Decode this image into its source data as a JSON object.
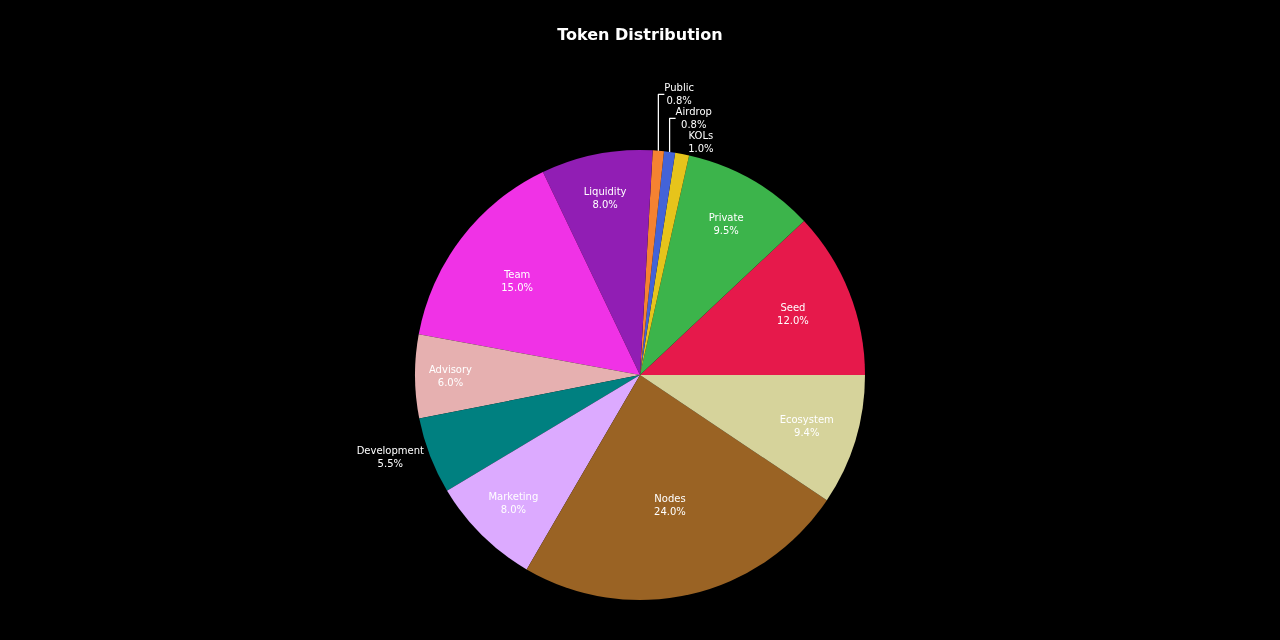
{
  "chart_data": {
    "type": "pie",
    "title": "Token Distribution",
    "categories": [
      "Seed",
      "Private",
      "KOLs",
      "Airdrop",
      "Public",
      "Liquidity",
      "Team",
      "Advisory",
      "Development",
      "Marketing",
      "Nodes",
      "Ecosystem"
    ],
    "values": [
      12.0,
      9.5,
      1.0,
      0.8,
      0.8,
      8.0,
      15.0,
      6.0,
      5.5,
      8.0,
      24.0,
      9.4
    ],
    "value_labels": [
      "12.0%",
      "9.5%",
      "1.0%",
      "0.8%",
      "0.8%",
      "8.0%",
      "15.0%",
      "6.0%",
      "5.5%",
      "8.0%",
      "24.0%",
      "9.4%"
    ],
    "colors": [
      "#e6194b",
      "#3cb44b",
      "#e6c41b",
      "#4363d8",
      "#f58231",
      "#911eb4",
      "#f032e6",
      "#e6b0b0",
      "#008080",
      "#dcaaff",
      "#9a6324",
      "#d6d39b"
    ],
    "legend": false
  }
}
